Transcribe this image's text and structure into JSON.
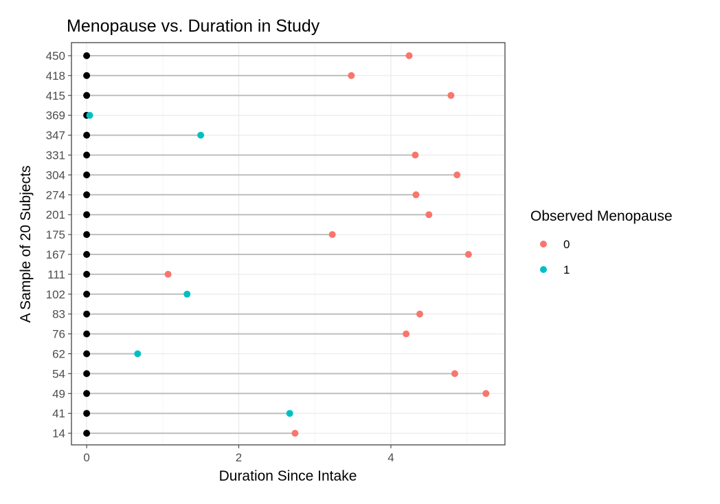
{
  "chart_data": {
    "type": "scatter",
    "title": "Menopause vs. Duration in Study",
    "xlabel": "Duration Since Intake",
    "ylabel": "A Sample of 20 Subjects",
    "xlim": [
      -0.2,
      5.5
    ],
    "x_ticks": [
      0,
      2,
      4
    ],
    "x_tick_labels": [
      "0",
      "2",
      "4"
    ],
    "grid": true,
    "legend": {
      "title": "Observed Menopause",
      "position": "right",
      "entries": [
        {
          "label": "0",
          "color": "#F8766D"
        },
        {
          "label": "1",
          "color": "#00BFC4"
        }
      ]
    },
    "colors": {
      "0": "#F8766D",
      "1": "#00BFC4",
      "start_point": "#000000",
      "segment": "#BEBEBE"
    },
    "categories": [
      "450",
      "418",
      "415",
      "369",
      "347",
      "331",
      "304",
      "274",
      "201",
      "175",
      "167",
      "111",
      "102",
      "83",
      "76",
      "62",
      "54",
      "49",
      "41",
      "14"
    ],
    "start": [
      0,
      0,
      0,
      0,
      0,
      0,
      0,
      0,
      0,
      0,
      0,
      0,
      0,
      0,
      0,
      0,
      0,
      0,
      0,
      0
    ],
    "end": [
      4.24,
      3.48,
      4.79,
      0.04,
      1.5,
      4.32,
      4.87,
      4.33,
      4.5,
      3.23,
      5.02,
      1.07,
      1.32,
      4.38,
      4.2,
      0.67,
      4.84,
      5.25,
      2.67,
      2.74
    ],
    "menopause": [
      0,
      0,
      0,
      1,
      1,
      0,
      0,
      0,
      0,
      0,
      0,
      0,
      1,
      0,
      0,
      1,
      0,
      0,
      1,
      0
    ]
  }
}
